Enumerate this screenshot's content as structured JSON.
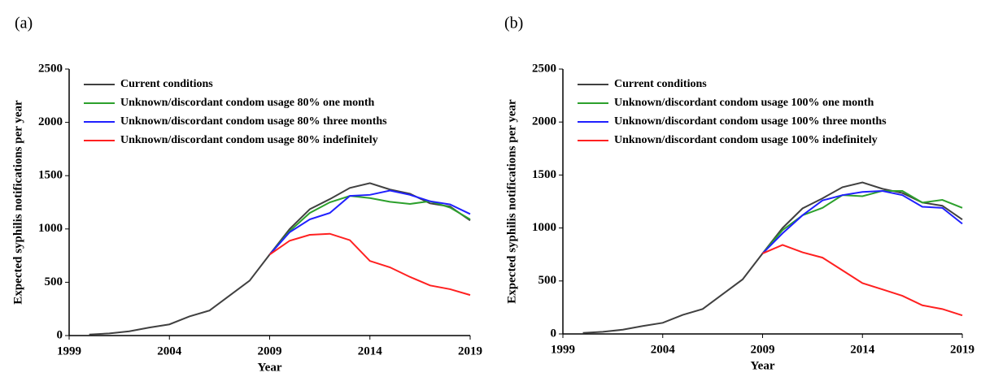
{
  "chart_data": [
    {
      "type": "line",
      "label": "(a)",
      "x_label": "Year",
      "y_label": "Expected syphilis notifications per year",
      "x": [
        2000,
        2001,
        2002,
        2003,
        2004,
        2005,
        2006,
        2007,
        2008,
        2009,
        2010,
        2011,
        2012,
        2013,
        2014,
        2015,
        2016,
        2017,
        2018,
        2019
      ],
      "xlim": [
        1999,
        2019
      ],
      "xticks": [
        1999,
        2004,
        2009,
        2014,
        2019
      ],
      "ylim": [
        0,
        2500
      ],
      "yticks": [
        0,
        500,
        1000,
        1500,
        2000,
        2500
      ],
      "legend": "upper left",
      "series": [
        {
          "name": "Current conditions",
          "color": "#404040",
          "values": [
            10,
            20,
            40,
            75,
            105,
            180,
            235,
            375,
            515,
            760,
            1000,
            1185,
            1280,
            1385,
            1430,
            1370,
            1330,
            1240,
            1210,
            1080
          ]
        },
        {
          "name": "Unknown/discordant condom usage 80% one month",
          "color": "#2ca02c",
          "values": [
            null,
            null,
            null,
            null,
            null,
            null,
            null,
            null,
            null,
            760,
            980,
            1150,
            1250,
            1310,
            1290,
            1255,
            1235,
            1260,
            1200,
            1090
          ]
        },
        {
          "name": "Unknown/discordant condom usage 80% three months",
          "color": "#2020ff",
          "values": [
            null,
            null,
            null,
            null,
            null,
            null,
            null,
            null,
            null,
            760,
            970,
            1090,
            1150,
            1310,
            1320,
            1360,
            1320,
            1260,
            1230,
            1140
          ]
        },
        {
          "name": "Unknown/discordant condom usage 80% indefinitely",
          "color": "#ff2020",
          "values": [
            null,
            null,
            null,
            null,
            null,
            null,
            null,
            null,
            null,
            760,
            890,
            945,
            955,
            895,
            700,
            640,
            550,
            470,
            435,
            380
          ]
        }
      ]
    },
    {
      "type": "line",
      "label": "(b)",
      "x_label": "Year",
      "y_label": "Expected syphilis notifications per year",
      "x": [
        2000,
        2001,
        2002,
        2003,
        2004,
        2005,
        2006,
        2007,
        2008,
        2009,
        2010,
        2011,
        2012,
        2013,
        2014,
        2015,
        2016,
        2017,
        2018,
        2019
      ],
      "xlim": [
        1999,
        2019
      ],
      "xticks": [
        1999,
        2004,
        2009,
        2014,
        2019
      ],
      "ylim": [
        0,
        2500
      ],
      "yticks": [
        0,
        500,
        1000,
        1500,
        2000,
        2500
      ],
      "legend": "upper left",
      "series": [
        {
          "name": "Current conditions",
          "color": "#404040",
          "values": [
            10,
            20,
            40,
            75,
            105,
            180,
            235,
            375,
            515,
            760,
            1000,
            1185,
            1280,
            1385,
            1430,
            1370,
            1330,
            1240,
            1210,
            1080
          ]
        },
        {
          "name": "Unknown/discordant condom usage 100% one month",
          "color": "#2ca02c",
          "values": [
            null,
            null,
            null,
            null,
            null,
            null,
            null,
            null,
            null,
            760,
            980,
            1120,
            1190,
            1310,
            1300,
            1350,
            1350,
            1240,
            1265,
            1190
          ]
        },
        {
          "name": "Unknown/discordant condom usage 100% three months",
          "color": "#2020ff",
          "values": [
            null,
            null,
            null,
            null,
            null,
            null,
            null,
            null,
            null,
            760,
            950,
            1120,
            1260,
            1310,
            1340,
            1350,
            1310,
            1200,
            1190,
            1040
          ]
        },
        {
          "name": "Unknown/discordant condom usage 100% indefinitely",
          "color": "#ff2020",
          "values": [
            null,
            null,
            null,
            null,
            null,
            null,
            null,
            null,
            null,
            760,
            840,
            770,
            720,
            600,
            480,
            420,
            360,
            270,
            235,
            175
          ]
        }
      ]
    }
  ]
}
